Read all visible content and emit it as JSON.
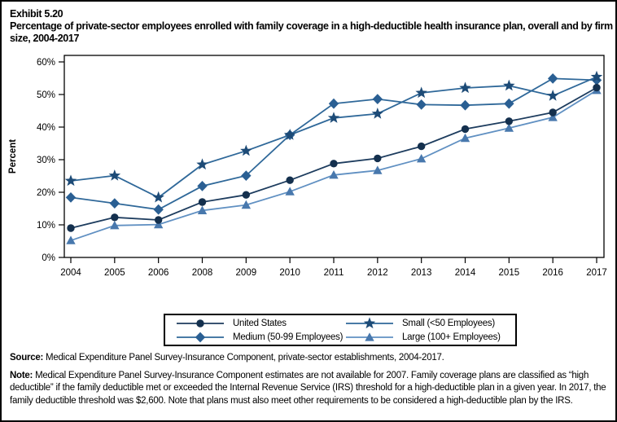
{
  "page": {
    "exhibit_label": "Exhibit 5.20",
    "title": "Percentage of private-sector employees enrolled with family coverage in a high-deductible health insurance plan, overall and by firm size, 2004-2017"
  },
  "chart_data": {
    "type": "line",
    "title": "",
    "xlabel": "",
    "ylabel": "Percent",
    "ylim": [
      0,
      60
    ],
    "yticks": [
      0,
      10,
      20,
      30,
      40,
      50,
      60
    ],
    "ytick_suffix": "%",
    "grid": false,
    "legend_position": "bottom-box",
    "categories": [
      "2004",
      "2005",
      "2006",
      "2008",
      "2009",
      "2010",
      "2011",
      "2012",
      "2013",
      "2014",
      "2015",
      "2016",
      "2017"
    ],
    "series": [
      {
        "name": "United States",
        "marker": "circle",
        "marker_color": "#14304e",
        "line_color": "#1d3c5e",
        "values": [
          9.0,
          12.3,
          11.5,
          17.0,
          19.2,
          23.7,
          28.8,
          30.4,
          34.1,
          39.4,
          41.8,
          44.5,
          52.1
        ]
      },
      {
        "name": "Small (<50 Employees)",
        "marker": "star",
        "marker_color": "#1d4b77",
        "line_color": "#2f6899",
        "values": [
          23.5,
          25.1,
          18.4,
          28.5,
          32.7,
          37.6,
          42.8,
          44.1,
          50.5,
          52.0,
          52.7,
          49.6,
          55.4
        ]
      },
      {
        "name": "Medium (50-99 Employees)",
        "marker": "diamond",
        "marker_color": "#2a5f93",
        "line_color": "#2f6899",
        "values": [
          18.4,
          16.6,
          14.7,
          21.9,
          25.1,
          37.6,
          47.2,
          48.6,
          46.9,
          46.7,
          47.2,
          54.9,
          54.4
        ]
      },
      {
        "name": "Large (100+ Employees)",
        "marker": "triangle",
        "marker_color": "#4878ad",
        "line_color": "#6090c2",
        "values": [
          5.2,
          9.8,
          10.1,
          14.4,
          16.1,
          20.2,
          25.3,
          26.7,
          30.3,
          36.6,
          39.7,
          43.0,
          51.3
        ]
      }
    ]
  },
  "footer": {
    "source_label": "Source:",
    "source_text": " Medical Expenditure Panel Survey-Insurance Component, private-sector establishments, 2004-2017.",
    "note_label": "Note:",
    "note_text": " Medical Expenditure Panel Survey-Insurance Component estimates are not available for 2007. Family coverage plans are classified as “high deductible” if the family deductible met or exceeded the Internal Revenue Service (IRS) threshold for a high-deductible plan in a given year. In 2017, the family deductible threshold was $2,600. Note that plans must also meet other requirements to be considered a high-deductible plan by the IRS."
  }
}
